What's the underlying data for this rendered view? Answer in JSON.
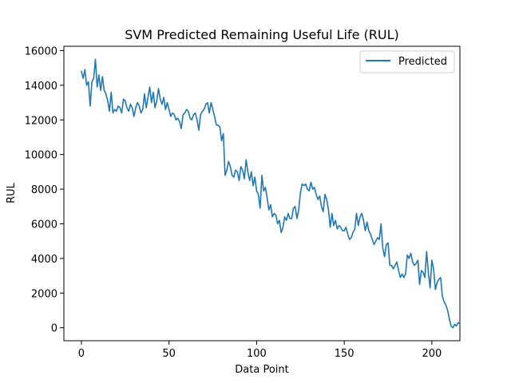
{
  "chart_data": {
    "type": "line",
    "title": "SVM Predicted Remaining Useful Life (RUL)",
    "xlabel": "Data Point",
    "ylabel": "RUL",
    "xlim": [
      -10,
      216
    ],
    "ylim": [
      -750,
      16250
    ],
    "xticks": [
      0,
      50,
      100,
      150,
      200
    ],
    "yticks": [
      0,
      2000,
      4000,
      6000,
      8000,
      10000,
      12000,
      14000,
      16000
    ],
    "grid": false,
    "legend_position": "upper right",
    "series": [
      {
        "name": "Predicted",
        "color": "#1f77b4",
        "values": [
          14800,
          14400,
          14900,
          14000,
          14200,
          12800,
          14200,
          14400,
          15500,
          13900,
          14600,
          13700,
          14500,
          13700,
          13500,
          13100,
          12500,
          13600,
          12400,
          12600,
          12500,
          12800,
          12700,
          12400,
          13200,
          13100,
          12700,
          12500,
          12900,
          12700,
          12200,
          12700,
          13000,
          12800,
          12400,
          12600,
          13500,
          12700,
          13300,
          13900,
          13000,
          13600,
          12700,
          13100,
          13800,
          13200,
          12900,
          13300,
          12600,
          13000,
          12600,
          12200,
          12400,
          12300,
          12000,
          12100,
          11900,
          11500,
          12300,
          12400,
          12600,
          12500,
          12100,
          12000,
          12300,
          12400,
          12000,
          11400,
          12300,
          12500,
          12600,
          12900,
          13000,
          12400,
          13000,
          12600,
          12200,
          11700,
          11700,
          11600,
          10800,
          11200,
          8800,
          9100,
          9600,
          9300,
          8800,
          8700,
          9100,
          9000,
          8500,
          9300,
          9100,
          8600,
          9700,
          9000,
          8500,
          9000,
          8200,
          8700,
          7900,
          7700,
          6900,
          8800,
          7900,
          8100,
          7500,
          6800,
          7100,
          6400,
          6600,
          6500,
          6000,
          6200,
          5500,
          5800,
          6400,
          6200,
          6600,
          6300,
          6300,
          6900,
          7000,
          6300,
          6800,
          7800,
          8300,
          8200,
          8300,
          8000,
          7900,
          8400,
          8000,
          8100,
          7700,
          7400,
          7600,
          7000,
          6700,
          7700,
          7400,
          6800,
          5800,
          6600,
          5900,
          6200,
          5700,
          5900,
          5800,
          5600,
          5600,
          5800,
          5400,
          5100,
          5200,
          5500,
          5700,
          6600,
          5900,
          6400,
          6600,
          6200,
          5600,
          6100,
          5600,
          5400,
          5100,
          4800,
          5000,
          5200,
          5100,
          6000,
          4600,
          4100,
          4800,
          4900,
          3600,
          3600,
          3400,
          3600,
          3800,
          3300,
          2900,
          3100,
          2900,
          3100,
          4200,
          4000,
          4300,
          3800,
          3600,
          3700,
          3900,
          2500,
          3300,
          3200,
          2900,
          4400,
          3200,
          2300,
          3900,
          3400,
          2200,
          2600,
          2800,
          2900,
          1800,
          1500,
          1300,
          1000,
          500,
          100,
          0,
          200,
          100,
          300,
          200
        ]
      }
    ]
  }
}
